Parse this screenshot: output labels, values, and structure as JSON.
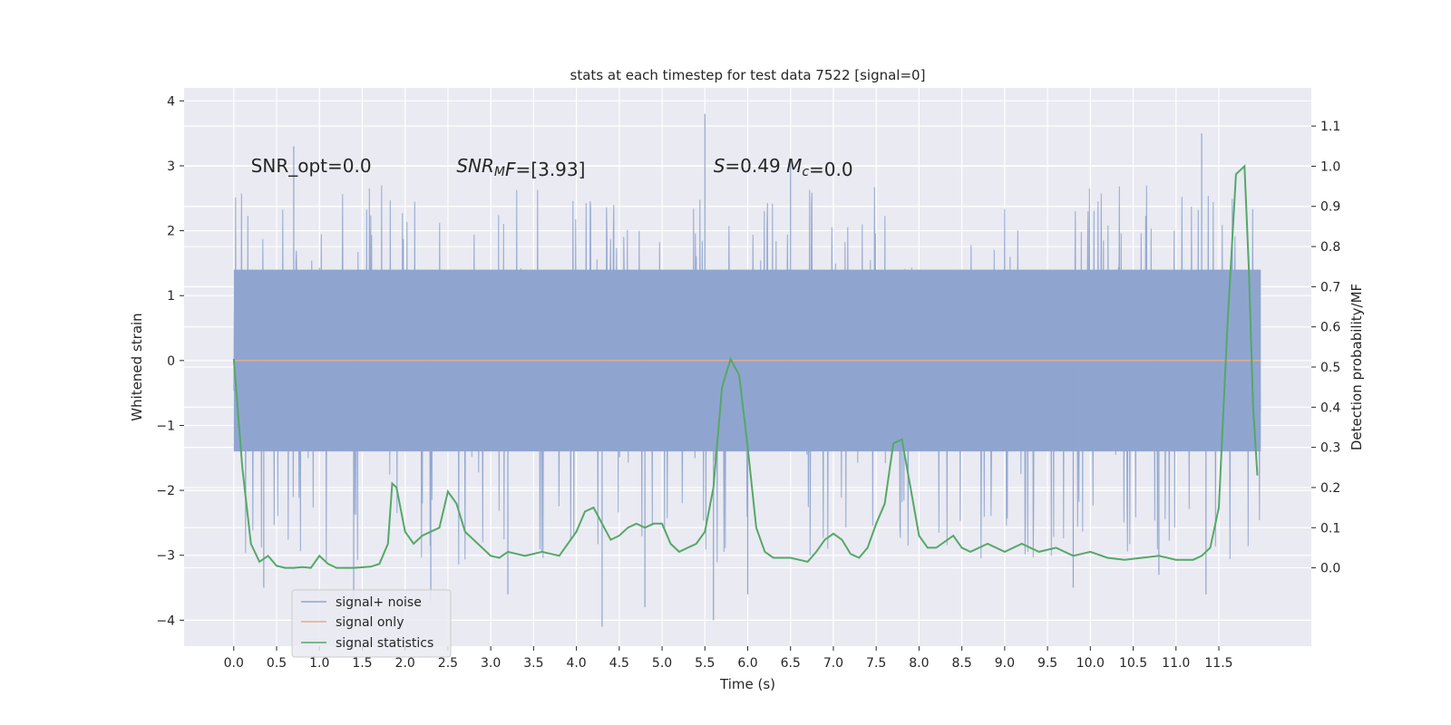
{
  "chart_data": {
    "type": "line",
    "title": "stats at each timestep for test data 7522 [signal=0]",
    "xlabel": "Time (s)",
    "ylabel": "Whitened strain",
    "y2label": "Detection probability/MF",
    "xlim": [
      -0.58,
      12.58
    ],
    "ylim": [
      -4.4,
      4.2
    ],
    "y2lim": [
      -0.195,
      1.195
    ],
    "x_ticks": [
      0.0,
      0.5,
      1.0,
      1.5,
      2.0,
      2.5,
      3.0,
      3.5,
      4.0,
      4.5,
      5.0,
      5.5,
      6.0,
      6.5,
      7.0,
      7.5,
      8.0,
      8.5,
      9.0,
      9.5,
      10.0,
      10.5,
      11.0,
      11.5
    ],
    "x_tick_labels": [
      "0.0",
      "0.5",
      "1.0",
      "1.5",
      "2.0",
      "2.5",
      "3.0",
      "3.5",
      "4.0",
      "4.5",
      "5.0",
      "5.5",
      "6.0",
      "6.5",
      "7.0",
      "7.5",
      "8.0",
      "8.5",
      "9.0",
      "9.5",
      "10.0",
      "10.5",
      "11.0",
      "11.5"
    ],
    "y_ticks": [
      -4,
      -3,
      -2,
      -1,
      0,
      1,
      2,
      3,
      4
    ],
    "y_tick_labels": [
      "−4",
      "−3",
      "−2",
      "−1",
      "0",
      "1",
      "2",
      "3",
      "4"
    ],
    "y2_ticks": [
      0.0,
      0.1,
      0.2,
      0.3,
      0.4,
      0.5,
      0.6,
      0.7,
      0.8,
      0.9,
      1.0,
      1.1
    ],
    "y2_tick_labels": [
      "0.0",
      "0.1",
      "0.2",
      "0.3",
      "0.4",
      "0.5",
      "0.6",
      "0.7",
      "0.8",
      "0.9",
      "1.0",
      "1.1"
    ],
    "grid": true,
    "legend_position": "lower-left",
    "annotations": [
      {
        "x": 0.2,
        "y": 3.0,
        "parts": [
          {
            "t": "SNR_opt=0.0"
          }
        ]
      },
      {
        "x": 2.6,
        "y": 3.0,
        "parts": [
          {
            "t": "SNR",
            "i": true
          },
          {
            "t": "M",
            "i": true,
            "sub": true
          },
          {
            "t": "F",
            "i": true
          },
          {
            "t": "=[3.93]"
          }
        ]
      },
      {
        "x": 5.6,
        "y": 3.0,
        "parts": [
          {
            "t": "S",
            "i": true
          },
          {
            "t": "=0.49   "
          },
          {
            "t": "M",
            "i": true
          },
          {
            "t": "c",
            "i": true,
            "sub": true
          },
          {
            "t": "=0.0"
          }
        ]
      }
    ],
    "series": [
      {
        "name": "signal+ noise",
        "axis": "left",
        "color": "#8fa5cf",
        "kind": "noise",
        "x_range": [
          0.0,
          11.99
        ],
        "core_band": [
          -1.4,
          1.4
        ],
        "envelope": [
          -3.0,
          2.6
        ],
        "extremes": [
          {
            "x": 0.35,
            "y": -3.5
          },
          {
            "x": 0.7,
            "y": 3.3
          },
          {
            "x": 1.4,
            "y": -3.7
          },
          {
            "x": 2.3,
            "y": -3.7
          },
          {
            "x": 3.2,
            "y": -3.6
          },
          {
            "x": 4.3,
            "y": -4.1
          },
          {
            "x": 4.8,
            "y": -3.8
          },
          {
            "x": 5.5,
            "y": 3.8
          },
          {
            "x": 5.6,
            "y": -4.0
          },
          {
            "x": 6.0,
            "y": -3.6
          },
          {
            "x": 6.5,
            "y": 3.1
          },
          {
            "x": 9.8,
            "y": -3.5
          },
          {
            "x": 10.8,
            "y": -3.3
          },
          {
            "x": 11.3,
            "y": 3.5
          },
          {
            "x": 11.35,
            "y": -3.6
          }
        ]
      },
      {
        "name": "signal only",
        "axis": "left",
        "color": "#e8ab8b",
        "x": [
          0.0,
          11.99
        ],
        "y": [
          0.0,
          0.0
        ]
      },
      {
        "name": "signal statistics",
        "axis": "right",
        "color": "#55a868",
        "x": [
          0.0,
          0.1,
          0.2,
          0.3,
          0.4,
          0.5,
          0.6,
          0.7,
          0.8,
          0.9,
          1.0,
          1.1,
          1.2,
          1.4,
          1.6,
          1.7,
          1.8,
          1.85,
          1.9,
          2.0,
          2.1,
          2.2,
          2.3,
          2.4,
          2.5,
          2.6,
          2.7,
          2.8,
          3.0,
          3.1,
          3.2,
          3.4,
          3.6,
          3.8,
          4.0,
          4.1,
          4.2,
          4.3,
          4.4,
          4.5,
          4.6,
          4.7,
          4.8,
          4.9,
          5.0,
          5.1,
          5.2,
          5.3,
          5.4,
          5.5,
          5.6,
          5.7,
          5.8,
          5.9,
          6.0,
          6.1,
          6.2,
          6.3,
          6.5,
          6.7,
          6.8,
          6.9,
          7.0,
          7.1,
          7.2,
          7.3,
          7.4,
          7.5,
          7.6,
          7.7,
          7.8,
          7.9,
          8.0,
          8.1,
          8.2,
          8.4,
          8.5,
          8.6,
          8.8,
          9.0,
          9.2,
          9.4,
          9.6,
          9.8,
          10.0,
          10.2,
          10.4,
          10.6,
          10.8,
          11.0,
          11.2,
          11.3,
          11.4,
          11.5,
          11.6,
          11.7,
          11.8,
          11.85,
          11.9,
          11.95
        ],
        "y": [
          0.52,
          0.25,
          0.06,
          0.015,
          0.03,
          0.005,
          0.0,
          0.0,
          0.002,
          0.0,
          0.03,
          0.01,
          0.0,
          0.0,
          0.003,
          0.01,
          0.06,
          0.21,
          0.2,
          0.09,
          0.06,
          0.08,
          0.09,
          0.1,
          0.19,
          0.16,
          0.09,
          0.07,
          0.03,
          0.025,
          0.04,
          0.03,
          0.04,
          0.03,
          0.09,
          0.14,
          0.15,
          0.11,
          0.07,
          0.08,
          0.1,
          0.11,
          0.1,
          0.11,
          0.11,
          0.06,
          0.04,
          0.05,
          0.06,
          0.09,
          0.2,
          0.45,
          0.52,
          0.48,
          0.3,
          0.1,
          0.04,
          0.025,
          0.025,
          0.015,
          0.04,
          0.07,
          0.085,
          0.07,
          0.035,
          0.025,
          0.05,
          0.11,
          0.16,
          0.31,
          0.32,
          0.2,
          0.08,
          0.05,
          0.05,
          0.08,
          0.05,
          0.04,
          0.06,
          0.04,
          0.06,
          0.04,
          0.05,
          0.03,
          0.04,
          0.025,
          0.02,
          0.025,
          0.03,
          0.02,
          0.02,
          0.03,
          0.05,
          0.15,
          0.6,
          0.98,
          1.0,
          0.75,
          0.4,
          0.23
        ]
      }
    ]
  }
}
